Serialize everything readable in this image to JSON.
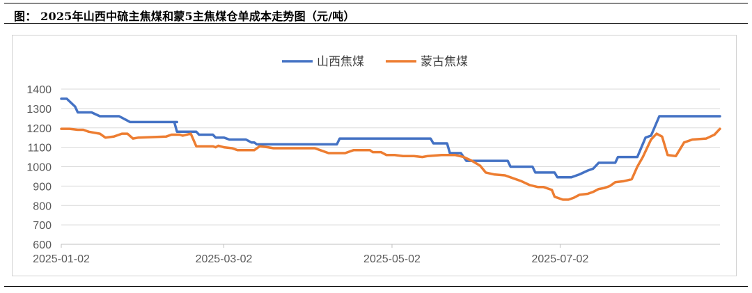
{
  "figure_title": "图：  2025年山西中硫主焦煤和蒙5主焦煤仓单成本走势图（元/吨）",
  "chart_data": {
    "type": "line",
    "title": "",
    "xlabel": "",
    "ylabel": "",
    "ylim": [
      600,
      1400
    ],
    "y_ticks": [
      600,
      700,
      800,
      900,
      1000,
      1100,
      1200,
      1300,
      1400
    ],
    "x_range": [
      "2025-01-02",
      "2025-08-29"
    ],
    "x_tick_labels": [
      "2025-01-02",
      "2025-03-02",
      "2025-05-02",
      "2025-07-02"
    ],
    "grid": "horizontal",
    "legend_position": "top-center",
    "series": [
      {
        "name": "山西焦煤",
        "color": "#4472C4",
        "points": [
          [
            "2025-01-02",
            1350
          ],
          [
            "2025-01-04",
            1350
          ],
          [
            "2025-01-07",
            1310
          ],
          [
            "2025-01-08",
            1280
          ],
          [
            "2025-01-13",
            1280
          ],
          [
            "2025-01-16",
            1260
          ],
          [
            "2025-01-23",
            1260
          ],
          [
            "2025-01-27",
            1230
          ],
          [
            "2025-02-11",
            1230
          ],
          [
            "2025-02-13",
            1230
          ],
          [
            "2025-02-12",
            1230
          ],
          [
            "2025-02-13",
            1180
          ],
          [
            "2025-02-20",
            1180
          ],
          [
            "2025-02-21",
            1165
          ],
          [
            "2025-02-26",
            1165
          ],
          [
            "2025-02-27",
            1150
          ],
          [
            "2025-03-02",
            1150
          ],
          [
            "2025-03-04",
            1140
          ],
          [
            "2025-03-10",
            1140
          ],
          [
            "2025-03-12",
            1125
          ],
          [
            "2025-03-13",
            1125
          ],
          [
            "2025-03-14",
            1115
          ],
          [
            "2025-04-12",
            1115
          ],
          [
            "2025-04-13",
            1145
          ],
          [
            "2025-05-16",
            1145
          ],
          [
            "2025-05-17",
            1120
          ],
          [
            "2025-05-22",
            1120
          ],
          [
            "2025-05-23",
            1070
          ],
          [
            "2025-05-27",
            1070
          ],
          [
            "2025-05-29",
            1030
          ],
          [
            "2025-06-13",
            1030
          ],
          [
            "2025-06-14",
            1000
          ],
          [
            "2025-06-22",
            1000
          ],
          [
            "2025-06-23",
            970
          ],
          [
            "2025-06-30",
            970
          ],
          [
            "2025-07-01",
            945
          ],
          [
            "2025-07-06",
            945
          ],
          [
            "2025-07-09",
            960
          ],
          [
            "2025-07-12",
            980
          ],
          [
            "2025-07-14",
            990
          ],
          [
            "2025-07-16",
            1020
          ],
          [
            "2025-07-22",
            1020
          ],
          [
            "2025-07-23",
            1050
          ],
          [
            "2025-07-30",
            1050
          ],
          [
            "2025-08-02",
            1150
          ],
          [
            "2025-08-04",
            1160
          ],
          [
            "2025-08-07",
            1260
          ],
          [
            "2025-08-29",
            1260
          ]
        ]
      },
      {
        "name": "蒙古焦煤",
        "color": "#ED7D31",
        "points": [
          [
            "2025-01-02",
            1195
          ],
          [
            "2025-01-05",
            1195
          ],
          [
            "2025-01-08",
            1190
          ],
          [
            "2025-01-10",
            1190
          ],
          [
            "2025-01-12",
            1180
          ],
          [
            "2025-01-16",
            1170
          ],
          [
            "2025-01-18",
            1150
          ],
          [
            "2025-01-21",
            1155
          ],
          [
            "2025-01-24",
            1170
          ],
          [
            "2025-01-26",
            1170
          ],
          [
            "2025-01-28",
            1145
          ],
          [
            "2025-01-30",
            1150
          ],
          [
            "2025-02-09",
            1155
          ],
          [
            "2025-02-11",
            1165
          ],
          [
            "2025-02-14",
            1165
          ],
          [
            "2025-02-15",
            1160
          ],
          [
            "2025-02-18",
            1170
          ],
          [
            "2025-02-20",
            1105
          ],
          [
            "2025-02-26",
            1105
          ],
          [
            "2025-02-27",
            1100
          ],
          [
            "2025-02-28",
            1108
          ],
          [
            "2025-03-02",
            1100
          ],
          [
            "2025-03-05",
            1095
          ],
          [
            "2025-03-07",
            1085
          ],
          [
            "2025-03-13",
            1085
          ],
          [
            "2025-03-15",
            1105
          ],
          [
            "2025-03-18",
            1100
          ],
          [
            "2025-03-20",
            1095
          ],
          [
            "2025-04-01",
            1095
          ],
          [
            "2025-04-04",
            1095
          ],
          [
            "2025-04-06",
            1085
          ],
          [
            "2025-04-09",
            1070
          ],
          [
            "2025-04-15",
            1070
          ],
          [
            "2025-04-18",
            1085
          ],
          [
            "2025-04-24",
            1085
          ],
          [
            "2025-04-25",
            1075
          ],
          [
            "2025-04-28",
            1075
          ],
          [
            "2025-04-30",
            1060
          ],
          [
            "2025-05-03",
            1060
          ],
          [
            "2025-05-06",
            1055
          ],
          [
            "2025-05-10",
            1055
          ],
          [
            "2025-05-13",
            1050
          ],
          [
            "2025-05-15",
            1055
          ],
          [
            "2025-05-20",
            1060
          ],
          [
            "2025-05-25",
            1060
          ],
          [
            "2025-05-28",
            1050
          ],
          [
            "2025-05-31",
            1030
          ],
          [
            "2025-06-03",
            1005
          ],
          [
            "2025-06-05",
            970
          ],
          [
            "2025-06-08",
            960
          ],
          [
            "2025-06-12",
            955
          ],
          [
            "2025-06-15",
            940
          ],
          [
            "2025-06-18",
            925
          ],
          [
            "2025-06-21",
            905
          ],
          [
            "2025-06-24",
            895
          ],
          [
            "2025-06-26",
            895
          ],
          [
            "2025-06-29",
            880
          ],
          [
            "2025-06-30",
            845
          ],
          [
            "2025-07-03",
            830
          ],
          [
            "2025-07-05",
            830
          ],
          [
            "2025-07-07",
            840
          ],
          [
            "2025-07-09",
            855
          ],
          [
            "2025-07-12",
            860
          ],
          [
            "2025-07-14",
            870
          ],
          [
            "2025-07-16",
            885
          ],
          [
            "2025-07-18",
            890
          ],
          [
            "2025-07-20",
            900
          ],
          [
            "2025-07-22",
            920
          ],
          [
            "2025-07-25",
            925
          ],
          [
            "2025-07-28",
            935
          ],
          [
            "2025-07-30",
            1000
          ],
          [
            "2025-08-01",
            1050
          ],
          [
            "2025-08-04",
            1140
          ],
          [
            "2025-08-06",
            1170
          ],
          [
            "2025-08-08",
            1155
          ],
          [
            "2025-08-10",
            1060
          ],
          [
            "2025-08-13",
            1055
          ],
          [
            "2025-08-16",
            1125
          ],
          [
            "2025-08-19",
            1140
          ],
          [
            "2025-08-24",
            1145
          ],
          [
            "2025-08-27",
            1165
          ],
          [
            "2025-08-29",
            1195
          ]
        ]
      }
    ]
  }
}
